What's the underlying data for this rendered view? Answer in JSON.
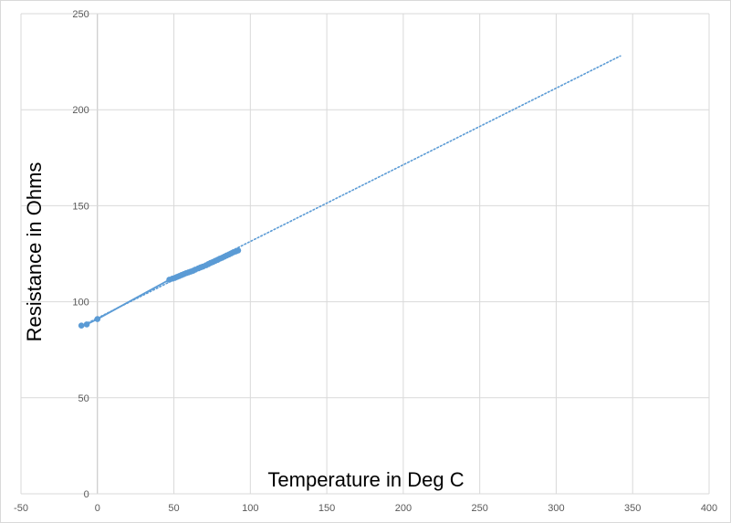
{
  "chart_data": {
    "type": "scatter",
    "title": "",
    "xlabel": "Temperature in Deg C",
    "ylabel": "Resistance in Ohms",
    "xlim": [
      -50,
      400
    ],
    "ylim": [
      0,
      250
    ],
    "x_ticks": [
      "-50",
      "0",
      "50",
      "100",
      "150",
      "200",
      "250",
      "300",
      "350",
      "400"
    ],
    "y_ticks": [
      "0",
      "50",
      "100",
      "150",
      "200",
      "250"
    ],
    "grid": true,
    "legend": "none",
    "colors": {
      "marker": "#5b9bd5",
      "line": "#5b9bd5",
      "grid": "#d9d9d9",
      "axis_zero": "#bfbfbf"
    },
    "series": [
      {
        "name": "",
        "points": [
          [
            -10.5,
            87.6
          ],
          [
            -7,
            88.2
          ],
          [
            0,
            91.0
          ],
          [
            47,
            111.5
          ],
          [
            49,
            112.0
          ],
          [
            50.5,
            112.4
          ],
          [
            52,
            112.9
          ],
          [
            53.5,
            113.4
          ],
          [
            55,
            113.9
          ],
          [
            56.5,
            114.4
          ],
          [
            58,
            114.9
          ],
          [
            59.5,
            115.3
          ],
          [
            61,
            115.7
          ],
          [
            62.5,
            116.1
          ],
          [
            64,
            116.7
          ],
          [
            66,
            117.4
          ],
          [
            67.5,
            117.9
          ],
          [
            69,
            118.3
          ],
          [
            71,
            119.0
          ],
          [
            72.5,
            119.6
          ],
          [
            74,
            120.2
          ],
          [
            75.5,
            120.7
          ],
          [
            77,
            121.3
          ],
          [
            78.5,
            121.8
          ],
          [
            80,
            122.4
          ],
          [
            81.5,
            122.9
          ],
          [
            83,
            123.5
          ],
          [
            84.5,
            124.1
          ],
          [
            86,
            124.6
          ],
          [
            87.5,
            125.2
          ],
          [
            89,
            125.8
          ],
          [
            90.5,
            126.2
          ],
          [
            92,
            126.7
          ]
        ]
      }
    ],
    "trendline": {
      "style": "dotted",
      "x": [
        -10.5,
        342
      ],
      "y": [
        87.3,
        228.0
      ]
    }
  }
}
